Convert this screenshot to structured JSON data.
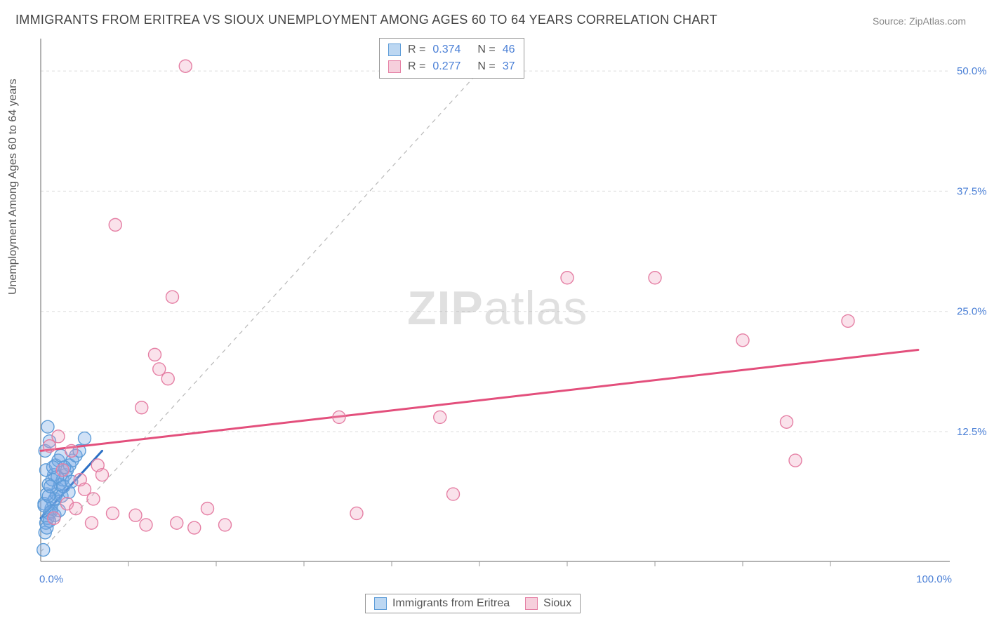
{
  "title": "IMMIGRANTS FROM ERITREA VS SIOUX UNEMPLOYMENT AMONG AGES 60 TO 64 YEARS CORRELATION CHART",
  "source_prefix": "Source: ",
  "source_name": "ZipAtlas.com",
  "y_axis_label": "Unemployment Among Ages 60 to 64 years",
  "watermark_bold": "ZIP",
  "watermark_light": "atlas",
  "chart": {
    "type": "scatter",
    "xlim": [
      0,
      100
    ],
    "ylim": [
      -1,
      53
    ],
    "x_ticks": [
      0,
      100
    ],
    "x_tick_labels": [
      "0.0%",
      "100.0%"
    ],
    "x_minor_ticks": [
      10,
      20,
      30,
      40,
      50,
      60,
      70,
      80,
      90
    ],
    "y_ticks": [
      12.5,
      25.0,
      37.5,
      50.0
    ],
    "y_tick_labels": [
      "12.5%",
      "25.0%",
      "37.5%",
      "50.0%"
    ],
    "background_color": "#ffffff",
    "grid_color": "#dcdcdc",
    "grid_dash": "4,4",
    "axis_color": "#9a9a9a",
    "diagonal_dash_color": "#b8b8b8",
    "series": [
      {
        "name": "Immigrants from Eritrea",
        "color_fill": "rgba(120,170,230,0.35)",
        "color_stroke": "#5d9cd8",
        "trend_color": "#2b6fc4",
        "marker_radius": 9,
        "R": "0.374",
        "N": "46",
        "legend_sq_fill": "#bcd7f2",
        "legend_sq_border": "#5d9cd8",
        "trend_line": {
          "x1": 0,
          "y1": 3.5,
          "x2": 7,
          "y2": 10.5
        },
        "points": [
          [
            0.3,
            0.2
          ],
          [
            0.5,
            2.0
          ],
          [
            0.6,
            3.0
          ],
          [
            0.8,
            3.5
          ],
          [
            1.0,
            4.0
          ],
          [
            1.2,
            4.5
          ],
          [
            0.4,
            5.0
          ],
          [
            1.4,
            5.2
          ],
          [
            1.6,
            5.5
          ],
          [
            0.7,
            6.0
          ],
          [
            1.8,
            6.0
          ],
          [
            2.0,
            6.5
          ],
          [
            0.9,
            7.0
          ],
          [
            2.2,
            7.0
          ],
          [
            1.3,
            7.5
          ],
          [
            2.5,
            7.5
          ],
          [
            1.5,
            8.0
          ],
          [
            2.8,
            8.0
          ],
          [
            0.6,
            8.5
          ],
          [
            3.0,
            8.5
          ],
          [
            1.7,
            9.0
          ],
          [
            3.3,
            9.0
          ],
          [
            2.0,
            9.5
          ],
          [
            3.6,
            9.5
          ],
          [
            2.3,
            10.0
          ],
          [
            4.0,
            10.0
          ],
          [
            0.5,
            10.5
          ],
          [
            4.4,
            10.5
          ],
          [
            1.0,
            11.5
          ],
          [
            5.0,
            11.8
          ],
          [
            0.8,
            13.0
          ],
          [
            1.2,
            4.2
          ],
          [
            1.6,
            3.8
          ],
          [
            2.4,
            5.8
          ],
          [
            1.9,
            7.8
          ],
          [
            2.7,
            8.8
          ],
          [
            3.2,
            6.2
          ],
          [
            0.4,
            4.8
          ],
          [
            0.9,
            5.8
          ],
          [
            1.1,
            6.8
          ],
          [
            1.4,
            8.8
          ],
          [
            2.1,
            4.3
          ],
          [
            2.6,
            6.8
          ],
          [
            3.5,
            7.3
          ],
          [
            1.0,
            3.2
          ],
          [
            0.7,
            2.5
          ]
        ]
      },
      {
        "name": "Sioux",
        "color_fill": "rgba(240,160,190,0.30)",
        "color_stroke": "#e57fa4",
        "trend_color": "#e34f7c",
        "marker_radius": 9,
        "R": "0.277",
        "N": "37",
        "legend_sq_fill": "#f6cfdc",
        "legend_sq_border": "#e57fa4",
        "trend_line": {
          "x1": 0,
          "y1": 10.5,
          "x2": 100,
          "y2": 21.0
        },
        "points": [
          [
            1.5,
            3.5
          ],
          [
            3.0,
            5.0
          ],
          [
            4.5,
            7.5
          ],
          [
            5.8,
            3.0
          ],
          [
            6.5,
            9.0
          ],
          [
            8.2,
            4.0
          ],
          [
            10.8,
            3.8
          ],
          [
            12.0,
            2.8
          ],
          [
            13.0,
            20.5
          ],
          [
            13.5,
            19.0
          ],
          [
            14.5,
            18.0
          ],
          [
            15.0,
            26.5
          ],
          [
            15.5,
            3.0
          ],
          [
            16.5,
            50.5
          ],
          [
            17.5,
            2.5
          ],
          [
            21.0,
            2.8
          ],
          [
            34.0,
            14.0
          ],
          [
            36.0,
            4.0
          ],
          [
            45.5,
            14.0
          ],
          [
            47.0,
            6.0
          ],
          [
            60.0,
            28.5
          ],
          [
            70.0,
            28.5
          ],
          [
            80.0,
            22.0
          ],
          [
            85.0,
            13.5
          ],
          [
            86.0,
            9.5
          ],
          [
            92.0,
            24.0
          ],
          [
            8.5,
            34.0
          ],
          [
            2.0,
            12.0
          ],
          [
            3.5,
            10.5
          ],
          [
            5.0,
            6.5
          ],
          [
            6.0,
            5.5
          ],
          [
            11.5,
            15.0
          ],
          [
            19.0,
            4.5
          ],
          [
            1.0,
            11.0
          ],
          [
            2.5,
            8.5
          ],
          [
            4.0,
            4.5
          ],
          [
            7.0,
            8.0
          ]
        ]
      }
    ]
  },
  "legend_top_rows": [
    {
      "sq_fill": "#bcd7f2",
      "sq_border": "#5d9cd8",
      "r_label": "R =",
      "r_val": "0.374",
      "n_label": "N =",
      "n_val": "46"
    },
    {
      "sq_fill": "#f6cfdc",
      "sq_border": "#e57fa4",
      "r_label": "R =",
      "r_val": "0.277",
      "n_label": "N =",
      "n_val": "37"
    }
  ],
  "legend_bottom_items": [
    {
      "sq_fill": "#bcd7f2",
      "sq_border": "#5d9cd8",
      "label": "Immigrants from Eritrea"
    },
    {
      "sq_fill": "#f6cfdc",
      "sq_border": "#e57fa4",
      "label": "Sioux"
    }
  ]
}
